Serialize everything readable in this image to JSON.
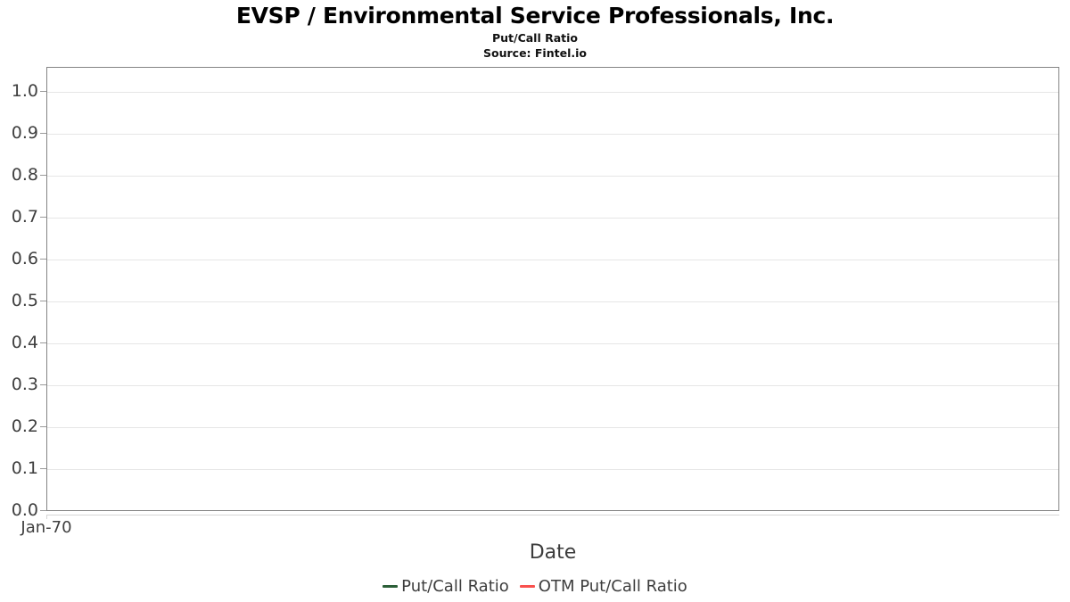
{
  "title": "EVSP / Environmental Service Professionals, Inc.",
  "subtitle": "Put/Call Ratio",
  "source": "Source: Fintel.io",
  "chart_data": {
    "type": "line",
    "title": "EVSP / Environmental Service Professionals, Inc.",
    "subtitle": "Put/Call Ratio",
    "source_note": "Source: Fintel.io",
    "xlabel": "Date",
    "ylabel": "",
    "x_ticks": [
      "Jan-70"
    ],
    "y_ticks": [
      "0.0",
      "0.1",
      "0.2",
      "0.3",
      "0.4",
      "0.5",
      "0.6",
      "0.7",
      "0.8",
      "0.9",
      "1.0"
    ],
    "ylim": [
      0,
      1.06
    ],
    "grid": true,
    "legend_position": "bottom",
    "plot_border_color": "#848484",
    "gridline_color": "#e6e6e6",
    "series": [
      {
        "name": "Put/Call Ratio",
        "color": "#2c5f38",
        "x": [],
        "values": []
      },
      {
        "name": "OTM Put/Call Ratio",
        "color": "#f9514e",
        "x": [],
        "values": []
      }
    ]
  }
}
